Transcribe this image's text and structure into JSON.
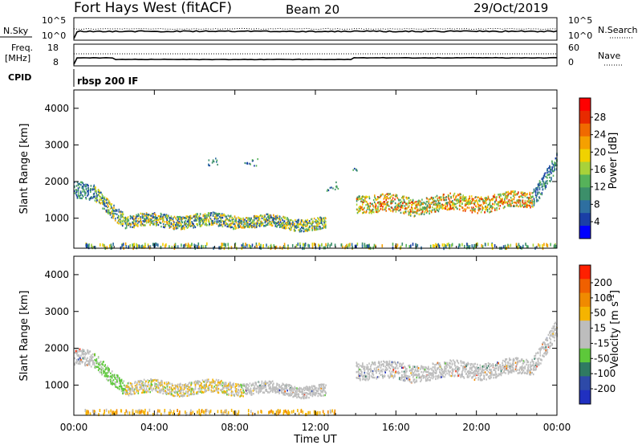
{
  "header": {
    "station": "Fort Hays West (fitACF)",
    "beam": "Beam 20",
    "date": "29/Oct/2019"
  },
  "panels": {
    "nsky": {
      "left_label": "N.Sky",
      "right_label": "N.Search",
      "left_ticks": [
        "10^5",
        "10^0"
      ],
      "right_ticks": [
        "10^5",
        "10^0"
      ]
    },
    "freq": {
      "left_label_line1": "Freq.",
      "left_label_line2": "[MHz]",
      "right_label": "Nave",
      "left_ticks": [
        "18",
        "8"
      ],
      "right_ticks": [
        "60",
        "0"
      ]
    },
    "cpid": {
      "label": "CPID",
      "value": "rbsp 200 IF"
    }
  },
  "colors": {
    "power_scale": [
      "#0000ff",
      "#1a3fa6",
      "#2e6fa0",
      "#3c8f6a",
      "#56b25a",
      "#a8d23a",
      "#f0d200",
      "#f5a000",
      "#f06a00",
      "#e82a00",
      "#ff0000"
    ],
    "velocity_scale": [
      "#2030c0",
      "#2e4aa8",
      "#2f7a62",
      "#5dc83a",
      "#bdbdbd",
      "#bdbdbd",
      "#f5b400",
      "#f08a00",
      "#f06000",
      "#ff2000"
    ]
  },
  "chart_data": [
    {
      "type": "heatmap",
      "name": "power",
      "title": "Fort Hays West (fitACF)",
      "xlabel": "Time UT",
      "ylabel": "Slant Range [km]",
      "colorbar_label": "Power [dB]",
      "colorbar_ticks": [
        "28",
        "24",
        "20",
        "16",
        "12",
        "8",
        "4"
      ],
      "xlim": [
        0,
        24
      ],
      "ylim": [
        180,
        4500
      ],
      "x_ticks": [
        "00:00",
        "04:00",
        "08:00",
        "12:00",
        "16:00",
        "20:00",
        "00:00"
      ],
      "y_ticks": [
        "1000",
        "2000",
        "3000",
        "4000"
      ],
      "scatter_bands": [
        {
          "t_start": 0.0,
          "t_end": 1.0,
          "range_start": 1800,
          "range_end": 1650,
          "width": 280,
          "level": "low"
        },
        {
          "t_start": 1.0,
          "t_end": 2.5,
          "range_start": 1650,
          "range_end": 1000,
          "width": 250,
          "level": "mixed"
        },
        {
          "t_start": 2.5,
          "t_end": 8.0,
          "range_start": 950,
          "range_end": 950,
          "width": 220,
          "level": "mixed"
        },
        {
          "t_start": 8.0,
          "t_end": 12.5,
          "range_start": 950,
          "range_end": 850,
          "width": 200,
          "level": "mixed"
        },
        {
          "t_start": 14.0,
          "t_end": 17.0,
          "range_start": 1450,
          "range_end": 1350,
          "width": 300,
          "level": "high"
        },
        {
          "t_start": 17.0,
          "t_end": 21.0,
          "range_start": 1400,
          "range_end": 1450,
          "width": 280,
          "level": "high"
        },
        {
          "t_start": 21.0,
          "t_end": 22.8,
          "range_start": 1450,
          "range_end": 1550,
          "width": 260,
          "level": "high"
        },
        {
          "t_start": 22.8,
          "t_end": 24.0,
          "range_start": 1600,
          "range_end": 2600,
          "width": 300,
          "level": "low"
        }
      ],
      "near_range_band": {
        "t_start": 0.5,
        "t_end": 24.0,
        "range": 280,
        "width": 120
      },
      "sparse_echoes": [
        {
          "t": 6.8,
          "range": 2500
        },
        {
          "t": 7.0,
          "range": 2550
        },
        {
          "t": 8.6,
          "range": 2450
        },
        {
          "t": 9.0,
          "range": 2550
        },
        {
          "t": 13.0,
          "range": 1900
        },
        {
          "t": 13.9,
          "range": 2300
        },
        {
          "t": 12.7,
          "range": 1800
        }
      ]
    },
    {
      "type": "heatmap",
      "name": "velocity",
      "xlabel": "Time UT",
      "ylabel": "Slant Range [km]",
      "colorbar_label": "Velocity [m s^-1]",
      "colorbar_ticks": [
        "200",
        "100",
        "50",
        "15",
        "-15",
        "-50",
        "-100",
        "-200"
      ],
      "xlim": [
        0,
        24
      ],
      "ylim": [
        180,
        4500
      ],
      "x_ticks": [
        "00:00",
        "04:00",
        "08:00",
        "12:00",
        "16:00",
        "20:00",
        "00:00"
      ],
      "y_ticks": [
        "1000",
        "2000",
        "3000",
        "4000"
      ],
      "scatter_bands": [
        {
          "t_start": 0.0,
          "t_end": 1.0,
          "range_start": 1800,
          "range_end": 1650,
          "width": 280,
          "level": "gray"
        },
        {
          "t_start": 1.0,
          "t_end": 2.5,
          "range_start": 1650,
          "range_end": 1000,
          "width": 250,
          "level": "green"
        },
        {
          "t_start": 2.5,
          "t_end": 5.5,
          "range_start": 950,
          "range_end": 950,
          "width": 220,
          "level": "mixed_gray_orange"
        },
        {
          "t_start": 5.5,
          "t_end": 8.5,
          "range_start": 950,
          "range_end": 950,
          "width": 220,
          "level": "mixed_gray_orange"
        },
        {
          "t_start": 8.5,
          "t_end": 12.5,
          "range_start": 950,
          "range_end": 850,
          "width": 200,
          "level": "gray"
        },
        {
          "t_start": 14.0,
          "t_end": 17.0,
          "range_start": 1450,
          "range_end": 1350,
          "width": 300,
          "level": "gray"
        },
        {
          "t_start": 17.0,
          "t_end": 21.0,
          "range_start": 1400,
          "range_end": 1450,
          "width": 280,
          "level": "gray"
        },
        {
          "t_start": 21.0,
          "t_end": 22.8,
          "range_start": 1450,
          "range_end": 1550,
          "width": 260,
          "level": "gray"
        },
        {
          "t_start": 22.8,
          "t_end": 24.0,
          "range_start": 1600,
          "range_end": 2600,
          "width": 300,
          "level": "gray"
        }
      ],
      "near_range_band": {
        "t_start": 0.5,
        "t_end": 13.0,
        "range": 300,
        "width": 120,
        "level": "orange"
      }
    }
  ]
}
